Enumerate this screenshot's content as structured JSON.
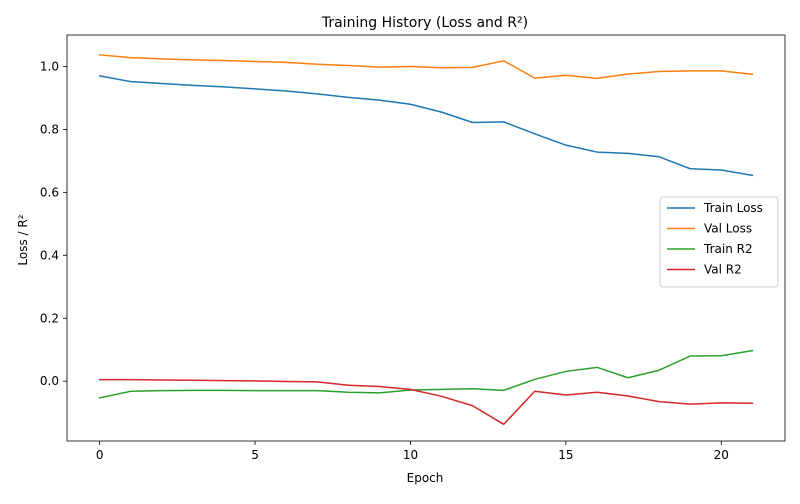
{
  "chart_data": {
    "type": "line",
    "title": "Training History (Loss and R²)",
    "xlabel": "Epoch",
    "ylabel": "Loss / R²",
    "xlim": [
      -1.05,
      22.05
    ],
    "ylim": [
      -0.19,
      1.1
    ],
    "xticks": [
      0,
      5,
      10,
      15,
      20
    ],
    "xtick_labels": [
      "0",
      "5",
      "10",
      "15",
      "20"
    ],
    "yticks": [
      0.0,
      0.2,
      0.4,
      0.6,
      0.8,
      1.0
    ],
    "ytick_labels": [
      "0.0",
      "0.2",
      "0.4",
      "0.6",
      "0.8",
      "1.0"
    ],
    "grid": false,
    "legend_position": "center-right",
    "x": [
      0,
      1,
      2,
      3,
      4,
      5,
      6,
      7,
      8,
      9,
      10,
      11,
      12,
      13,
      14,
      15,
      16,
      17,
      18,
      19,
      20,
      21
    ],
    "series": [
      {
        "name": "Train Loss",
        "color": "#1f77b4",
        "values": [
          0.97,
          0.952,
          0.946,
          0.94,
          0.935,
          0.929,
          0.922,
          0.913,
          0.902,
          0.893,
          0.88,
          0.855,
          0.822,
          0.824,
          0.786,
          0.75,
          0.728,
          0.724,
          0.713,
          0.675,
          0.671,
          0.654
        ]
      },
      {
        "name": "Val Loss",
        "color": "#ff7f0e",
        "values": [
          1.037,
          1.028,
          1.024,
          1.021,
          1.019,
          1.016,
          1.013,
          1.007,
          1.003,
          0.998,
          1.0,
          0.996,
          0.997,
          1.018,
          0.963,
          0.972,
          0.962,
          0.976,
          0.984,
          0.986,
          0.986,
          0.975
        ]
      },
      {
        "name": "Train R2",
        "color": "#2ca02c",
        "values": [
          -0.053,
          -0.032,
          -0.03,
          -0.029,
          -0.029,
          -0.03,
          -0.03,
          -0.03,
          -0.035,
          -0.037,
          -0.028,
          -0.026,
          -0.024,
          -0.029,
          0.006,
          0.031,
          0.044,
          0.011,
          0.035,
          0.08,
          0.081,
          0.097
        ]
      },
      {
        "name": "Val R2",
        "color": "#d62728",
        "values": [
          0.005,
          0.005,
          0.004,
          0.003,
          0.002,
          0.001,
          -0.001,
          -0.002,
          -0.013,
          -0.017,
          -0.026,
          -0.048,
          -0.078,
          -0.137,
          -0.032,
          -0.044,
          -0.035,
          -0.047,
          -0.065,
          -0.073,
          -0.069,
          -0.07
        ]
      }
    ]
  }
}
